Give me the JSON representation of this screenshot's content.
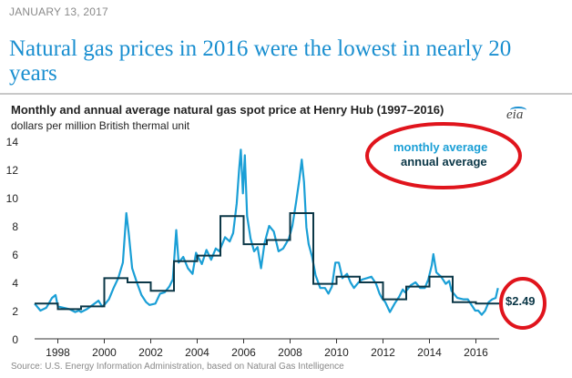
{
  "header": {
    "date": "JANUARY 13, 2017",
    "headline": "Natural gas prices in 2016 were the lowest in nearly 20 years"
  },
  "chart": {
    "title": "Monthly and annual average natural gas spot price at Henry Hub (1997–2016)",
    "subtitle": "dollars per million British thermal unit",
    "logo_text": "eia",
    "legend_monthly": "monthly average",
    "legend_annual": "annual average",
    "callout_value": "$2.49",
    "source": "Source: U.S. Energy Information Administration, based on Natural Gas Intelligence"
  },
  "colors": {
    "monthly": "#1a9fd6",
    "annual": "#0b3747",
    "highlight_ring": "#e0141c",
    "headline": "#1a8fd0"
  },
  "chart_data": {
    "type": "line",
    "title": "Monthly and annual average natural gas spot price at Henry Hub (1997–2016)",
    "ylabel": "dollars per million British thermal unit",
    "xlabel": "",
    "xlim": [
      1997.0,
      2017.0
    ],
    "ylim": [
      0,
      14
    ],
    "x_ticks": [
      1998,
      2000,
      2002,
      2004,
      2006,
      2008,
      2010,
      2012,
      2014,
      2016
    ],
    "y_ticks": [
      0,
      2,
      4,
      6,
      8,
      10,
      12,
      14
    ],
    "series": [
      {
        "name": "monthly average",
        "points": [
          [
            1997.0,
            2.5
          ],
          [
            1997.25,
            2.0
          ],
          [
            1997.5,
            2.2
          ],
          [
            1997.75,
            2.9
          ],
          [
            1997.9,
            3.1
          ],
          [
            1998.0,
            2.3
          ],
          [
            1998.25,
            2.2
          ],
          [
            1998.5,
            2.1
          ],
          [
            1998.75,
            1.9
          ],
          [
            1998.9,
            2.0
          ],
          [
            1999.0,
            1.9
          ],
          [
            1999.25,
            2.1
          ],
          [
            1999.5,
            2.4
          ],
          [
            1999.75,
            2.7
          ],
          [
            1999.9,
            2.3
          ],
          [
            2000.0,
            2.4
          ],
          [
            2000.2,
            2.8
          ],
          [
            2000.4,
            3.6
          ],
          [
            2000.6,
            4.3
          ],
          [
            2000.8,
            5.4
          ],
          [
            2000.95,
            8.9
          ],
          [
            2001.05,
            7.5
          ],
          [
            2001.2,
            5.0
          ],
          [
            2001.4,
            4.0
          ],
          [
            2001.6,
            3.1
          ],
          [
            2001.8,
            2.6
          ],
          [
            2001.95,
            2.4
          ],
          [
            2002.2,
            2.5
          ],
          [
            2002.4,
            3.2
          ],
          [
            2002.6,
            3.3
          ],
          [
            2002.8,
            3.7
          ],
          [
            2002.95,
            4.2
          ],
          [
            2003.1,
            7.7
          ],
          [
            2003.2,
            5.4
          ],
          [
            2003.4,
            5.8
          ],
          [
            2003.6,
            5.0
          ],
          [
            2003.8,
            4.6
          ],
          [
            2003.95,
            6.1
          ],
          [
            2004.2,
            5.3
          ],
          [
            2004.4,
            6.3
          ],
          [
            2004.6,
            5.6
          ],
          [
            2004.8,
            6.4
          ],
          [
            2004.95,
            6.2
          ],
          [
            2005.2,
            7.2
          ],
          [
            2005.4,
            6.9
          ],
          [
            2005.55,
            7.5
          ],
          [
            2005.7,
            9.6
          ],
          [
            2005.8,
            11.9
          ],
          [
            2005.88,
            13.4
          ],
          [
            2005.97,
            10.3
          ],
          [
            2006.05,
            13.0
          ],
          [
            2006.15,
            8.7
          ],
          [
            2006.3,
            7.1
          ],
          [
            2006.45,
            6.2
          ],
          [
            2006.6,
            6.5
          ],
          [
            2006.75,
            5.0
          ],
          [
            2006.9,
            6.8
          ],
          [
            2007.1,
            8.0
          ],
          [
            2007.3,
            7.6
          ],
          [
            2007.5,
            6.2
          ],
          [
            2007.7,
            6.4
          ],
          [
            2007.95,
            7.1
          ],
          [
            2008.1,
            8.0
          ],
          [
            2008.25,
            9.6
          ],
          [
            2008.4,
            11.3
          ],
          [
            2008.5,
            12.7
          ],
          [
            2008.6,
            11.1
          ],
          [
            2008.7,
            7.9
          ],
          [
            2008.8,
            6.7
          ],
          [
            2008.95,
            5.8
          ],
          [
            2009.1,
            4.5
          ],
          [
            2009.3,
            3.6
          ],
          [
            2009.5,
            3.6
          ],
          [
            2009.65,
            3.2
          ],
          [
            2009.8,
            3.7
          ],
          [
            2009.95,
            5.4
          ],
          [
            2010.1,
            5.4
          ],
          [
            2010.25,
            4.3
          ],
          [
            2010.45,
            4.6
          ],
          [
            2010.6,
            4.0
          ],
          [
            2010.75,
            3.6
          ],
          [
            2010.95,
            4.0
          ],
          [
            2011.1,
            4.2
          ],
          [
            2011.3,
            4.3
          ],
          [
            2011.5,
            4.4
          ],
          [
            2011.7,
            3.9
          ],
          [
            2011.85,
            3.2
          ],
          [
            2011.95,
            2.9
          ],
          [
            2012.1,
            2.6
          ],
          [
            2012.3,
            1.9
          ],
          [
            2012.5,
            2.5
          ],
          [
            2012.7,
            3.0
          ],
          [
            2012.85,
            3.5
          ],
          [
            2012.95,
            3.3
          ],
          [
            2013.2,
            3.8
          ],
          [
            2013.4,
            4.0
          ],
          [
            2013.6,
            3.6
          ],
          [
            2013.8,
            3.6
          ],
          [
            2013.95,
            4.2
          ],
          [
            2014.1,
            5.2
          ],
          [
            2014.17,
            6.0
          ],
          [
            2014.3,
            4.7
          ],
          [
            2014.5,
            4.4
          ],
          [
            2014.7,
            3.9
          ],
          [
            2014.85,
            4.1
          ],
          [
            2014.95,
            3.4
          ],
          [
            2015.2,
            2.9
          ],
          [
            2015.45,
            2.8
          ],
          [
            2015.65,
            2.8
          ],
          [
            2015.85,
            2.3
          ],
          [
            2015.97,
            2.0
          ],
          [
            2016.1,
            2.0
          ],
          [
            2016.25,
            1.7
          ],
          [
            2016.4,
            2.0
          ],
          [
            2016.55,
            2.6
          ],
          [
            2016.7,
            2.8
          ],
          [
            2016.85,
            2.9
          ],
          [
            2016.95,
            3.6
          ]
        ]
      },
      {
        "name": "annual average",
        "steps": [
          {
            "year": 1997,
            "value": 2.5
          },
          {
            "year": 1998,
            "value": 2.1
          },
          {
            "year": 1999,
            "value": 2.3
          },
          {
            "year": 2000,
            "value": 4.3
          },
          {
            "year": 2001,
            "value": 4.0
          },
          {
            "year": 2002,
            "value": 3.4
          },
          {
            "year": 2003,
            "value": 5.5
          },
          {
            "year": 2004,
            "value": 5.9
          },
          {
            "year": 2005,
            "value": 8.7
          },
          {
            "year": 2006,
            "value": 6.7
          },
          {
            "year": 2007,
            "value": 7.0
          },
          {
            "year": 2008,
            "value": 8.9
          },
          {
            "year": 2009,
            "value": 3.9
          },
          {
            "year": 2010,
            "value": 4.4
          },
          {
            "year": 2011,
            "value": 4.0
          },
          {
            "year": 2012,
            "value": 2.8
          },
          {
            "year": 2013,
            "value": 3.7
          },
          {
            "year": 2014,
            "value": 4.4
          },
          {
            "year": 2015,
            "value": 2.6
          },
          {
            "year": 2016,
            "value": 2.5
          }
        ]
      }
    ],
    "annotations": [
      {
        "text": "$2.49",
        "note": "2016 annual average, circled in red"
      },
      {
        "text": "monthly average / annual average",
        "note": "legend, circled in red, top-right"
      }
    ],
    "legend_position": "top-right",
    "grid": false
  }
}
